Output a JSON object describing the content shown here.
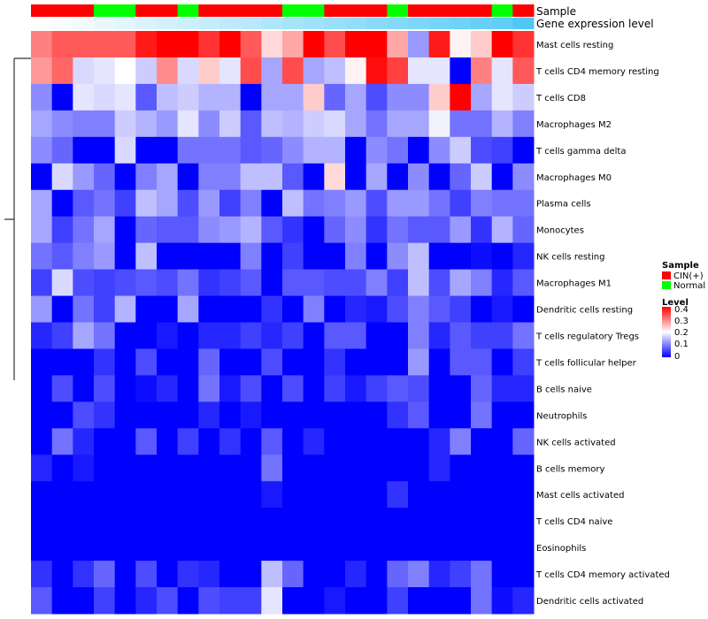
{
  "chart_data": {
    "type": "heatmap",
    "annotation_labels": {
      "sample": "Sample",
      "gene_expression": "Gene expression level"
    },
    "sample_groups": [
      "CIN(+)",
      "CIN(+)",
      "CIN(+)",
      "Normal",
      "Normal",
      "CIN(+)",
      "CIN(+)",
      "Normal",
      "CIN(+)",
      "CIN(+)",
      "CIN(+)",
      "CIN(+)",
      "Normal",
      "Normal",
      "CIN(+)",
      "CIN(+)",
      "CIN(+)",
      "Normal",
      "CIN(+)",
      "CIN(+)",
      "CIN(+)",
      "CIN(+)",
      "Normal",
      "CIN(+)"
    ],
    "gene_expression_level": [
      0,
      0.04,
      0.08,
      0.12,
      0.17,
      0.21,
      0.25,
      0.29,
      0.33,
      0.37,
      0.41,
      0.45,
      0.5,
      0.54,
      0.58,
      0.62,
      0.66,
      0.7,
      0.74,
      0.78,
      0.82,
      0.86,
      0.9,
      1.0
    ],
    "gene_expression_colors": [
      "#ffffff",
      "#4fc8f5"
    ],
    "rows": [
      "Mast cells resting",
      "T cells CD4 memory resting",
      "T cells CD8",
      "Macrophages M2",
      "T cells gamma delta",
      "Macrophages M0",
      "Plasma cells",
      "Monocytes",
      "NK cells resting",
      "Macrophages M1",
      "Dendritic cells resting",
      "T cells regulatory  Tregs",
      "T cells follicular helper",
      "B cells naive",
      "Neutrophils",
      "NK cells activated",
      "B cells memory",
      "Mast cells activated",
      "T cells CD4 naive",
      "Eosinophils",
      "T cells CD4 memory activated",
      "Dendritic cells activated"
    ],
    "values": [
      [
        0.3,
        0.33,
        0.33,
        0.33,
        0.33,
        0.38,
        0.4,
        0.4,
        0.36,
        0.4,
        0.33,
        0.23,
        0.27,
        0.4,
        0.34,
        0.4,
        0.4,
        0.27,
        0.12,
        0.38,
        0.21,
        0.24,
        0.4,
        0.36
      ],
      [
        0.28,
        0.32,
        0.17,
        0.18,
        0.2,
        0.16,
        0.29,
        0.17,
        0.24,
        0.18,
        0.34,
        0.13,
        0.34,
        0.13,
        0.15,
        0.21,
        0.39,
        0.35,
        0.18,
        0.18,
        0,
        0.3,
        0.18,
        0.33
      ],
      [
        0.11,
        0,
        0.18,
        0.17,
        0.18,
        0.07,
        0.15,
        0.16,
        0.14,
        0.14,
        0,
        0.13,
        0.13,
        0.24,
        0.08,
        0.13,
        0.06,
        0.11,
        0.11,
        0.24,
        0.4,
        0.13,
        0.18,
        0.16
      ],
      [
        0.13,
        0.11,
        0.1,
        0.1,
        0.16,
        0.14,
        0.12,
        0.18,
        0.11,
        0.16,
        0.07,
        0.15,
        0.14,
        0.16,
        0.17,
        0.13,
        0.09,
        0.13,
        0.13,
        0.19,
        0.09,
        0.09,
        0.14,
        0.1
      ],
      [
        0.11,
        0.08,
        0,
        0,
        0.17,
        0,
        0,
        0.09,
        0.09,
        0.09,
        0.07,
        0.08,
        0.11,
        0.14,
        0.14,
        0,
        0.11,
        0.09,
        0,
        0.11,
        0.16,
        0.06,
        0.05,
        0
      ],
      [
        0,
        0.17,
        0.12,
        0.08,
        0,
        0.1,
        0.13,
        0,
        0.1,
        0.1,
        0.15,
        0.15,
        0.07,
        0,
        0.23,
        0,
        0.13,
        0,
        0.11,
        0,
        0.08,
        0.16,
        0,
        0.11
      ],
      [
        0.13,
        0,
        0.07,
        0.09,
        0.05,
        0.15,
        0.13,
        0.06,
        0.12,
        0.05,
        0.1,
        0,
        0.15,
        0.09,
        0.1,
        0.12,
        0.06,
        0.12,
        0.12,
        0.09,
        0.05,
        0.1,
        0.09,
        0.09
      ],
      [
        0.13,
        0.05,
        0.09,
        0.13,
        0,
        0.08,
        0.07,
        0.07,
        0.11,
        0.12,
        0.14,
        0.07,
        0.04,
        0,
        0.08,
        0.11,
        0.04,
        0.09,
        0.07,
        0.07,
        0.12,
        0.04,
        0.14,
        0.08
      ],
      [
        0.09,
        0.07,
        0.1,
        0.12,
        0,
        0.15,
        0,
        0,
        0,
        0,
        0.1,
        0,
        0.05,
        0,
        0,
        0.1,
        0,
        0.11,
        0.15,
        0,
        0,
        0.01,
        0,
        0.03
      ],
      [
        0.05,
        0.17,
        0.06,
        0.05,
        0.06,
        0.07,
        0.06,
        0.09,
        0.04,
        0.05,
        0.07,
        0,
        0.07,
        0.07,
        0.06,
        0.06,
        0.1,
        0.05,
        0.15,
        0.06,
        0.13,
        0.1,
        0.03,
        0.07
      ],
      [
        0.12,
        0,
        0.09,
        0.05,
        0.14,
        0,
        0,
        0.13,
        0,
        0,
        0,
        0.04,
        0,
        0.1,
        0,
        0.03,
        0.02,
        0.06,
        0.1,
        0.07,
        0.05,
        0,
        0.02,
        0
      ],
      [
        0.03,
        0.05,
        0.13,
        0.09,
        0,
        0,
        0.02,
        0,
        0.03,
        0.03,
        0.05,
        0.03,
        0.05,
        0,
        0.07,
        0.07,
        0,
        0,
        0.1,
        0.03,
        0.07,
        0.05,
        0.05,
        0.09
      ],
      [
        0,
        0,
        0,
        0.04,
        0,
        0.06,
        0,
        0,
        0.08,
        0,
        0,
        0.06,
        0,
        0,
        0.04,
        0,
        0,
        0,
        0.12,
        0,
        0.07,
        0.07,
        0,
        0.05
      ],
      [
        0,
        0.06,
        0,
        0.06,
        0,
        0.01,
        0.03,
        0,
        0.09,
        0.02,
        0.06,
        0,
        0.06,
        0,
        0.05,
        0.02,
        0.05,
        0.07,
        0.06,
        0,
        0,
        0.08,
        0.03,
        0.03
      ],
      [
        0,
        0,
        0.06,
        0.04,
        0,
        0,
        0,
        0,
        0.03,
        0,
        0.02,
        0,
        0,
        0,
        0,
        0,
        0,
        0.04,
        0.07,
        0,
        0,
        0.09,
        0,
        0
      ],
      [
        0,
        0.09,
        0.03,
        0,
        0,
        0.07,
        0,
        0.05,
        0,
        0.04,
        0,
        0.07,
        0,
        0.03,
        0,
        0,
        0,
        0,
        0,
        0.03,
        0.1,
        0,
        0,
        0.08
      ],
      [
        0.03,
        0,
        0.02,
        0,
        0,
        0,
        0,
        0,
        0,
        0,
        0,
        0.09,
        0,
        0,
        0,
        0,
        0,
        0,
        0,
        0.03,
        0,
        0,
        0,
        0
      ],
      [
        0,
        0,
        0,
        0,
        0,
        0,
        0,
        0,
        0,
        0,
        0,
        0.02,
        0,
        0,
        0,
        0,
        0,
        0.04,
        0,
        0,
        0,
        0,
        0,
        0
      ],
      [
        0,
        0,
        0,
        0,
        0,
        0,
        0,
        0,
        0,
        0,
        0,
        0,
        0,
        0,
        0,
        0,
        0,
        0,
        0,
        0,
        0,
        0,
        0,
        0
      ],
      [
        0,
        0,
        0,
        0,
        0,
        0,
        0,
        0,
        0,
        0,
        0,
        0,
        0,
        0,
        0,
        0,
        0,
        0,
        0,
        0,
        0,
        0,
        0,
        0
      ],
      [
        0.04,
        0,
        0.04,
        0.08,
        0,
        0.06,
        0,
        0.04,
        0.03,
        0,
        0,
        0.15,
        0.08,
        0,
        0,
        0.03,
        0,
        0.08,
        0.1,
        0.03,
        0.05,
        0.09,
        0,
        0
      ],
      [
        0.07,
        0,
        0,
        0.05,
        0,
        0.03,
        0.06,
        0,
        0.06,
        0.05,
        0.05,
        0.18,
        0,
        0,
        0.02,
        0,
        0,
        0.05,
        0,
        0,
        0,
        0.09,
        0.01,
        0.03
      ]
    ],
    "color_scale": {
      "min": 0,
      "mid": 0.2,
      "max": 0.4,
      "low": "#0000ff",
      "midc": "#ffffff",
      "high": "#ff0000"
    },
    "legend": {
      "sample_title": "Sample",
      "sample_entries": [
        {
          "label": "CIN(+)",
          "color": "#ff0000"
        },
        {
          "label": "Normal",
          "color": "#00ff00"
        }
      ],
      "level_title": "Level",
      "level_ticks": [
        "0.4",
        "0.3",
        "0.2",
        "0.1",
        "0"
      ],
      "placement": "right"
    }
  }
}
